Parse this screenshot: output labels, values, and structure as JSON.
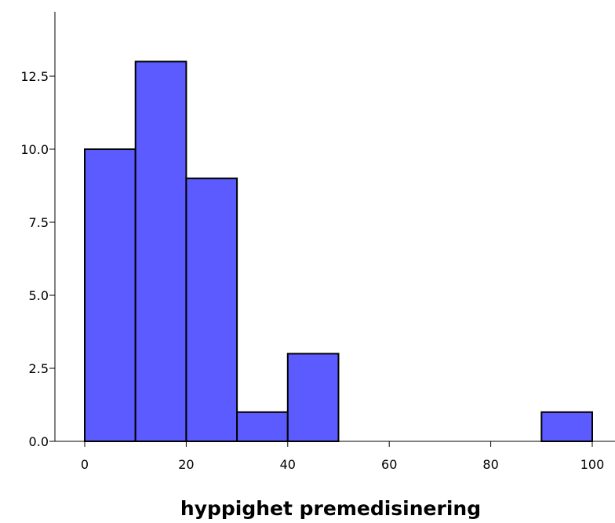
{
  "chart_data": {
    "type": "bar",
    "subtype": "histogram",
    "title": "",
    "xlabel": "hyppighet premedisinering",
    "ylabel": "",
    "bins": [
      {
        "start": 0,
        "end": 10,
        "count": 10
      },
      {
        "start": 10,
        "end": 20,
        "count": 13
      },
      {
        "start": 20,
        "end": 30,
        "count": 9
      },
      {
        "start": 30,
        "end": 40,
        "count": 1
      },
      {
        "start": 40,
        "end": 50,
        "count": 3
      },
      {
        "start": 90,
        "end": 100,
        "count": 1
      }
    ],
    "xlim": [
      0,
      100
    ],
    "ylim": [
      0,
      14.5
    ],
    "x_ticks": [
      0,
      20,
      40,
      60,
      80,
      100
    ],
    "x_tick_labels": [
      "0",
      "20",
      "40",
      "60",
      "80",
      "100"
    ],
    "y_ticks": [
      0,
      2.5,
      5,
      7.5,
      10,
      12.5
    ],
    "y_tick_labels": [
      "0.0",
      "2.5",
      "5.0",
      "7.5",
      "10.0",
      "12.5"
    ],
    "grid": false,
    "legend": "none",
    "colors": {
      "bar_fill": "#5b5bff",
      "bar_stroke": "#000000",
      "axis": "#000000"
    }
  }
}
